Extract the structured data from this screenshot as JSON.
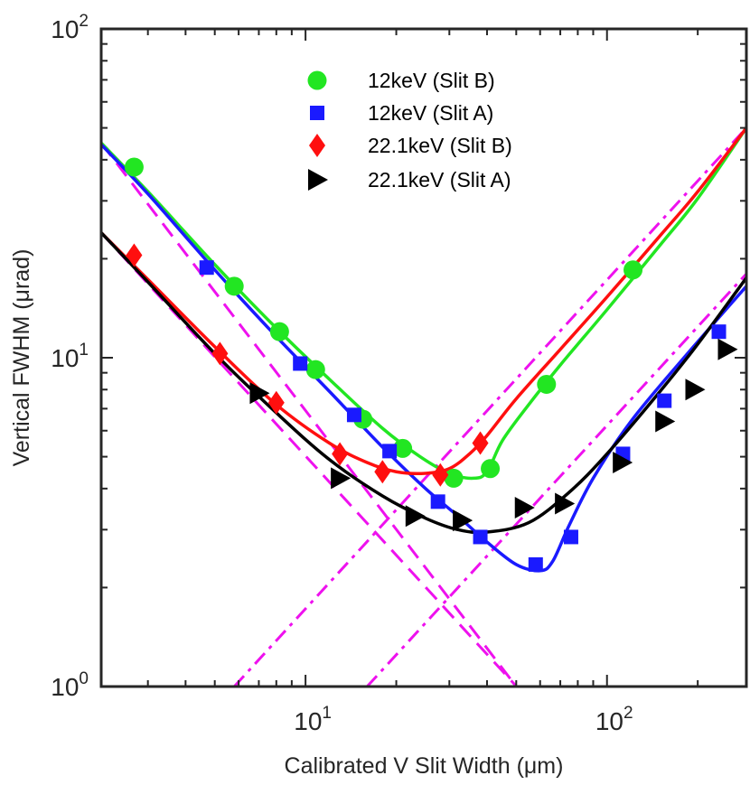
{
  "chart_data": {
    "type": "scatter",
    "xscale": "log",
    "yscale": "log",
    "xlim": [
      2.1,
      290
    ],
    "ylim": [
      1,
      100
    ],
    "xlabel": "Calibrated V Slit Width (μm)",
    "ylabel": "Vertical FWHM (μrad)",
    "xtick_labels": [
      {
        "value": 10,
        "base": "10",
        "exp": "1"
      },
      {
        "value": 100,
        "base": "10",
        "exp": "2"
      }
    ],
    "ytick_labels": [
      {
        "value": 1,
        "base": "10",
        "exp": "0"
      },
      {
        "value": 10,
        "base": "10",
        "exp": "1"
      },
      {
        "value": 100,
        "base": "10",
        "exp": "2"
      }
    ],
    "legend_position": "top-center",
    "series": [
      {
        "name": "12keV (Slit B)",
        "marker": "circle",
        "color": "#22e622",
        "x": [
          2.7,
          5.8,
          8.2,
          10.8,
          15.5,
          21,
          31,
          41,
          63,
          122
        ],
        "y": [
          38,
          16.5,
          12,
          9.2,
          6.5,
          5.3,
          4.3,
          4.6,
          8.3,
          18.5
        ]
      },
      {
        "name": "12keV (Slit A)",
        "marker": "square",
        "color": "#1a1aff",
        "x": [
          4.7,
          9.6,
          14.5,
          19,
          27.5,
          38,
          58,
          76,
          113,
          155,
          235
        ],
        "y": [
          18.8,
          9.6,
          6.7,
          5.2,
          3.65,
          2.85,
          2.35,
          2.85,
          5.1,
          7.4,
          12
        ]
      },
      {
        "name": "22.1keV (Slit B)",
        "marker": "diamond",
        "color": "#ff0f0f",
        "x": [
          2.7,
          5.2,
          8,
          13,
          18,
          28,
          38
        ],
        "y": [
          20.5,
          10.3,
          7.3,
          5.1,
          4.5,
          4.4,
          5.5
        ]
      },
      {
        "name": "22.1keV (Slit A)",
        "marker": "triangle-right",
        "color": "#000000",
        "x": [
          7,
          13,
          23,
          33,
          53,
          72,
          112,
          155,
          195,
          250
        ],
        "y": [
          7.8,
          4.3,
          3.3,
          3.2,
          3.5,
          3.6,
          4.8,
          6.4,
          8,
          10.6
        ]
      }
    ],
    "fit_curves": [
      {
        "name": "12keV (Slit B) fit",
        "color": "#22e622",
        "x": [
          2.1,
          3,
          5,
          8,
          12,
          18,
          24,
          30,
          36,
          40,
          45,
          55,
          70,
          100,
          150,
          200,
          290
        ],
        "y": [
          45,
          32,
          19.2,
          12.3,
          8.6,
          6.1,
          5.0,
          4.45,
          4.3,
          4.5,
          5.6,
          7.2,
          9.5,
          14.0,
          22.0,
          30.5,
          50
        ]
      },
      {
        "name": "12keV (Slit A) fit",
        "color": "#1a1aff",
        "x": [
          2.1,
          3,
          5,
          8,
          12,
          18,
          25,
          32,
          40,
          50,
          60,
          66,
          75,
          90,
          120,
          180,
          290
        ],
        "y": [
          44.5,
          31.5,
          18.5,
          11.6,
          7.9,
          5.35,
          4.0,
          3.3,
          2.75,
          2.35,
          2.25,
          2.4,
          3.1,
          4.3,
          6.4,
          10.0,
          16.5
        ]
      },
      {
        "name": "22.1keV (Slit B) fit",
        "color": "#ff0f0f",
        "x": [
          2.1,
          3,
          5,
          8,
          12,
          16,
          20,
          25,
          30,
          35,
          40,
          50,
          70,
          100,
          150,
          200,
          290
        ],
        "y": [
          24,
          17.3,
          10.8,
          7.2,
          5.5,
          4.8,
          4.5,
          4.45,
          4.6,
          5.1,
          5.8,
          7.5,
          10.6,
          15.3,
          23.5,
          32,
          50
        ]
      },
      {
        "name": "22.1keV (Slit A) fit",
        "color": "#000000",
        "x": [
          2.1,
          3,
          5,
          8,
          12,
          18,
          25,
          32,
          40,
          55,
          75,
          100,
          150,
          200,
          290
        ],
        "y": [
          24,
          17,
          10.3,
          6.8,
          4.9,
          3.8,
          3.25,
          3.0,
          2.95,
          3.15,
          3.9,
          5.1,
          7.9,
          11.0,
          17.5
        ]
      }
    ],
    "asymptotes": [
      {
        "name": "diffraction limit 12keV",
        "style": "dash",
        "color": "#ee11ee",
        "x": [
          2.1,
          50
        ],
        "y": [
          45,
          1
        ]
      },
      {
        "name": "diffraction limit 22.1keV",
        "style": "dash",
        "color": "#ee11ee",
        "x": [
          2.1,
          91
        ],
        "y": [
          24,
          0.55
        ]
      },
      {
        "name": "geometric limit low",
        "style": "dashdot",
        "color": "#ee11ee",
        "x": [
          5.8,
          290
        ],
        "y": [
          1,
          50
        ]
      },
      {
        "name": "geometric limit high",
        "style": "dashdot",
        "color": "#ee11ee",
        "x": [
          16,
          290
        ],
        "y": [
          1,
          18
        ]
      }
    ]
  }
}
